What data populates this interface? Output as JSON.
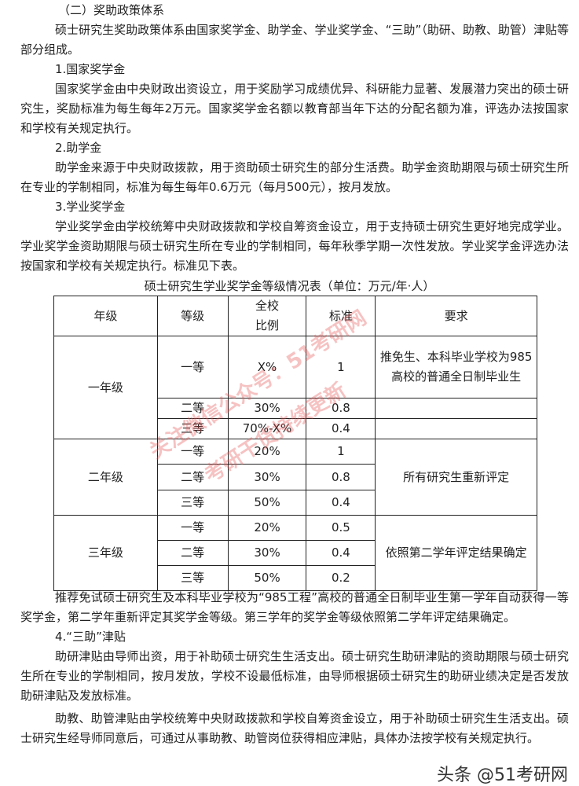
{
  "section_title": "（二）奖助政策体系",
  "intro": "硕士研究生奖助政策体系由国家奖学金、助学金、学业奖学金、“三助”（助研、助教、助管）津贴等部分组成。",
  "national": {
    "heading": "1.国家奖学金",
    "text": "国家奖学金由中央财政出资设立，用于奖励学习成绩优异、科研能力显著、发展潜力突出的硕士研究生，奖励标准为每生每年2万元。国家奖学金名额以教育部当年下达的分配名额为准，评选办法按国家和学校有关规定执行。"
  },
  "grant": {
    "heading": "2.助学金",
    "text": "助学金来源于中央财政拨款，用于资助硕士研究生的部分生活费。助学金资助期限与硕士研究生所在专业的学制相同，标准为每生每年0.6万元（每月500元），按月发放。"
  },
  "academic": {
    "heading": "3.学业奖学金",
    "text": "学业奖学金由学校统筹中央财政拨款和学校自筹资金设立，用于支持硕士研究生更好地完成学业。学业奖学金资助期限与硕士研究生所在专业的学制相同，每年秋季学期一次性发放。学业奖学金评选办法按国家和学校有关规定执行。标准见下表。"
  },
  "table": {
    "caption": "硕士研究生学业奖学金等级情况表（单位：万元/年·人）",
    "headers": [
      "年级",
      "等级",
      "全校比例",
      "标准",
      "要求"
    ],
    "header_ratio_lines": [
      "全校",
      "比例"
    ],
    "groups": [
      {
        "year": "一年级",
        "rows": [
          {
            "level": "一等",
            "ratio": "X%",
            "amount": "1",
            "req": "推免生、本科毕业学校为985高校的普通全日制毕业生"
          },
          {
            "level": "二等",
            "ratio": "30%",
            "amount": "0.8",
            "req": ""
          },
          {
            "level": "三等",
            "ratio": "70%-X%",
            "amount": "0.4",
            "req": ""
          }
        ]
      },
      {
        "year": "二年级",
        "req": "所有研究生重新评定",
        "rows": [
          {
            "level": "一等",
            "ratio": "20%",
            "amount": "1"
          },
          {
            "level": "二等",
            "ratio": "30%",
            "amount": "0.8"
          },
          {
            "level": "三等",
            "ratio": "50%",
            "amount": "0.4"
          }
        ]
      },
      {
        "year": "三年级",
        "req": "依照第二学年评定结果确定",
        "rows": [
          {
            "level": "一等",
            "ratio": "20%",
            "amount": "0.5"
          },
          {
            "level": "二等",
            "ratio": "30%",
            "amount": "0.4"
          },
          {
            "level": "三等",
            "ratio": "50%",
            "amount": "0.2"
          }
        ]
      }
    ]
  },
  "note": "推荐免试硕士研究生及本科毕业学校为“985工程”高校的普通全日制毕业生第一学年自动获得一等奖学金，第二学年重新评定其奖学金等级。第三学年的奖学金等级依照第二学年评定结果确定。",
  "sanzhu": {
    "heading": "4.“三助”津贴",
    "text1": "助研津贴由导师出资，用于补助硕士研究生生活支出。硕士研究生助研津贴的资助期限与硕士研究生所在专业的学制相同，按月发放，学校不设最低标准，由导师根据硕士研究生的助研业绩决定是否发放助研津贴及发放标准。",
    "text2": "助教、助管津贴由学校统筹中央财政拨款和学校自筹资金设立，用于补助硕士研究生生活支出。硕士研究生经导师同意后，可通过从事助教、助管岗位获得相应津贴，具体办法按学校有关规定执行。"
  },
  "watermark": {
    "line1": "关注微信公众号：51考研网",
    "line2": "考研干货持续更新",
    "color": "#e65050"
  },
  "footer_watermark": "头条 @51考研网"
}
